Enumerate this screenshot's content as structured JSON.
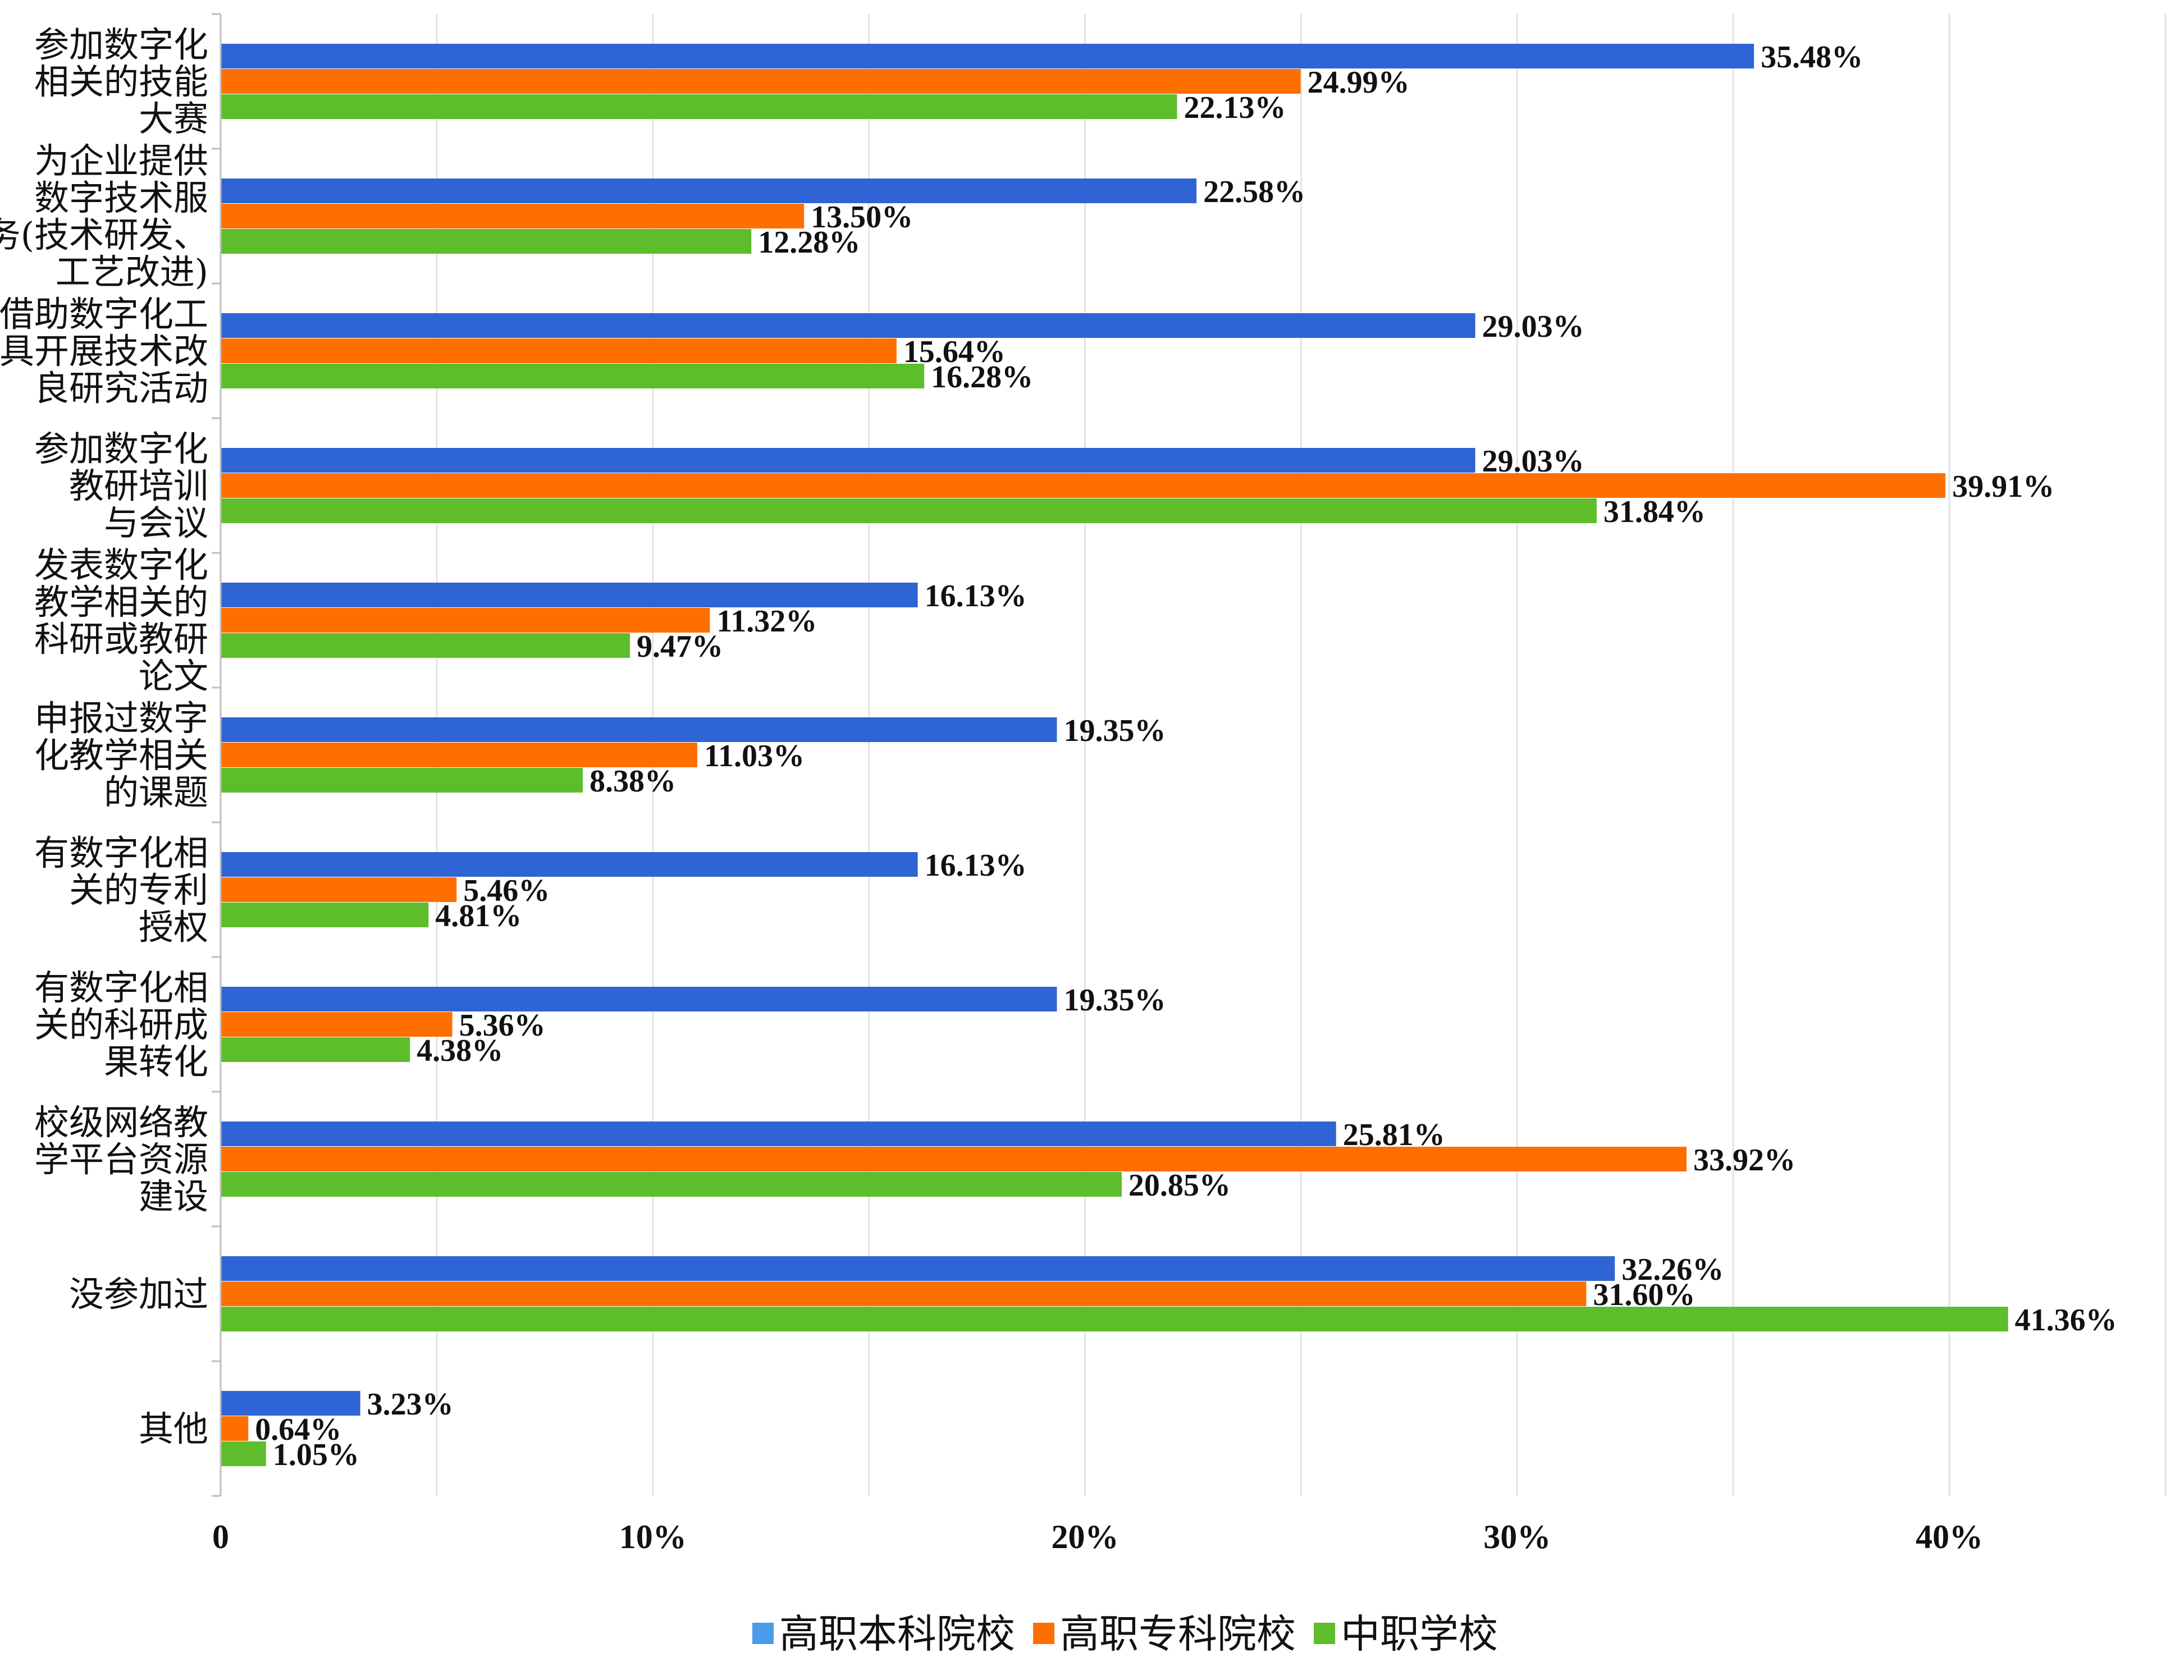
{
  "chart_data": {
    "type": "bar",
    "orientation": "horizontal",
    "categories": [
      [
        "参加数字化",
        "相关的技能",
        "大赛"
      ],
      [
        "为企业提供",
        "数字技术服",
        "务(技术研发、",
        "工艺改进)"
      ],
      [
        "借助数字化工",
        "具开展技术改",
        "良研究活动"
      ],
      [
        "参加数字化",
        "教研培训",
        "与会议"
      ],
      [
        "发表数字化",
        "教学相关的",
        "科研或教研",
        "论文"
      ],
      [
        "申报过数字",
        "化教学相关",
        "的课题"
      ],
      [
        "有数字化相",
        "关的专利",
        "授权"
      ],
      [
        "有数字化相",
        "关的科研成",
        "果转化"
      ],
      [
        "校级网络教",
        "学平台资源",
        "建设"
      ],
      [
        "没参加过"
      ],
      [
        "其他"
      ]
    ],
    "series": [
      {
        "name": "高职本科院校",
        "color": "#2e64d4",
        "values": [
          35.48,
          22.58,
          29.03,
          29.03,
          16.13,
          19.35,
          16.13,
          19.35,
          25.81,
          32.26,
          3.23
        ],
        "labels": [
          "35.48%",
          "22.58%",
          "29.03%",
          "29.03%",
          "16.13%",
          "19.35%",
          "16.13%",
          "19.35%",
          "25.81%",
          "32.26%",
          "3.23%"
        ]
      },
      {
        "name": "高职专科院校",
        "color": "#ff6f00",
        "values": [
          24.99,
          13.5,
          15.64,
          39.91,
          11.32,
          11.03,
          5.46,
          5.36,
          33.92,
          31.6,
          0.64
        ],
        "labels": [
          "24.99%",
          "13.50%",
          "15.64%",
          "39.91%",
          "11.32%",
          "11.03%",
          "5.46%",
          "5.36%",
          "33.92%",
          "31.60%",
          "0.64%"
        ]
      },
      {
        "name": "中职学校",
        "color": "#5dbd2a",
        "values": [
          22.13,
          12.28,
          16.28,
          31.84,
          9.47,
          8.38,
          4.81,
          4.38,
          20.85,
          41.36,
          1.05
        ],
        "labels": [
          "22.13%",
          "12.28%",
          "16.28%",
          "31.84%",
          "9.47%",
          "8.38%",
          "4.81%",
          "4.38%",
          "20.85%",
          "41.36%",
          "1.05%"
        ]
      }
    ],
    "xlim": [
      0,
      45
    ],
    "xticks": [
      0,
      10,
      20,
      30,
      40
    ],
    "xtick_labels": [
      "0",
      "10%",
      "20%",
      "30%",
      "40%"
    ],
    "grid": true,
    "legend": {
      "position": "bottom",
      "swatch_colors": [
        "#4a9be8",
        "#ff6f00",
        "#5dbd2a"
      ]
    }
  }
}
